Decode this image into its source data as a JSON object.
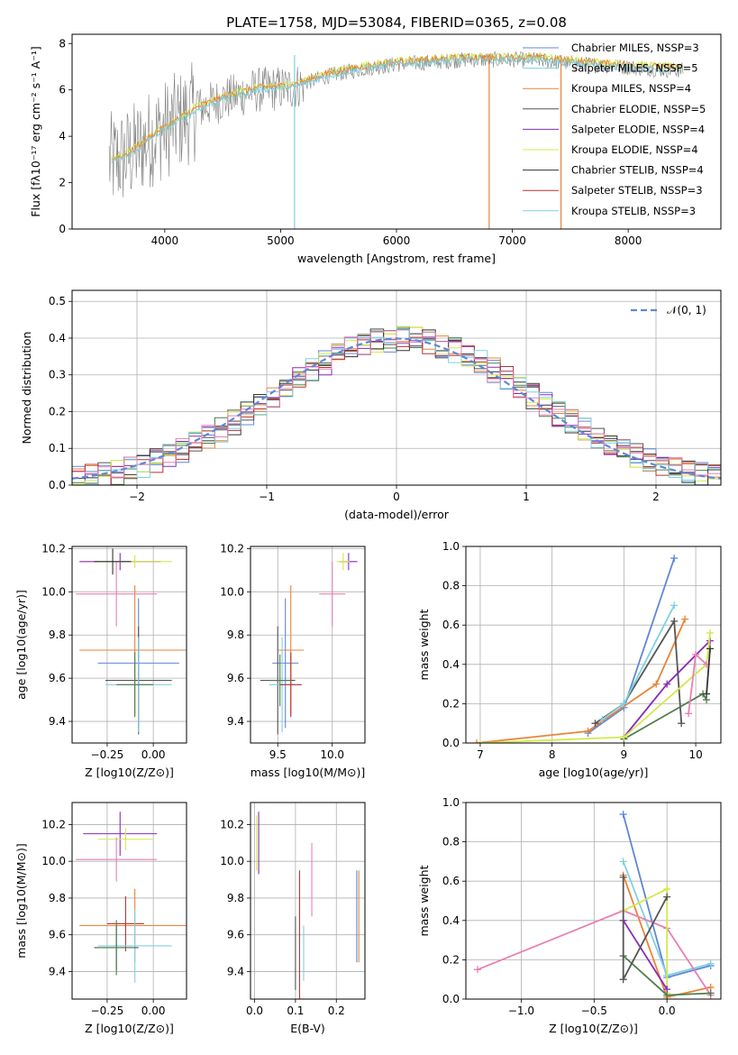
{
  "figure": {
    "title": "PLATE=1758, MJD=53084, FIBERID=0365, z=0.08",
    "colors": [
      "#5f87d8",
      "#e8843a",
      "#555555",
      "#4f7d4f",
      "#8a2bb8",
      "#d4e84a",
      "#333333",
      "#b83333",
      "#7fd1e0",
      "#e87fb5"
    ]
  },
  "chart_data": [
    {
      "id": "spectrum",
      "type": "line",
      "title": "PLATE=1758, MJD=53084, FIBERID=0365, z=0.08",
      "xlabel": "wavelength [Angstrom, rest frame]",
      "ylabel": "Flux [fλ10⁻¹⁷ erg cm⁻² s⁻¹ A⁻¹]",
      "xlim": [
        3200,
        8800
      ],
      "ylim": [
        0,
        8.4
      ],
      "xticks": [
        4000,
        5000,
        6000,
        7000,
        8000
      ],
      "yticks": [
        0,
        2,
        4,
        6,
        8
      ],
      "legend_position": "right",
      "legend": [
        {
          "label": "Chabrier MILES, NSSP=3",
          "color": "#5f87d8"
        },
        {
          "label": "Salpeter MILES, NSSP=5",
          "color": "#7fd1e0"
        },
        {
          "label": "Kroupa MILES, NSSP=4",
          "color": "#e8843a"
        },
        {
          "label": "Chabrier ELODIE, NSSP=5",
          "color": "#555555"
        },
        {
          "label": "Salpeter ELODIE, NSSP=4",
          "color": "#8a2bb8"
        },
        {
          "label": "Kroupa ELODIE, NSSP=4",
          "color": "#d4e84a"
        },
        {
          "label": "Chabrier STELIB, NSSP=4",
          "color": "#333333"
        },
        {
          "label": "Salpeter STELIB, NSSP=3",
          "color": "#b83333"
        },
        {
          "label": "Kroupa STELIB, NSSP=3",
          "color": "#7fd1e0"
        }
      ],
      "continuum": {
        "x": [
          3550,
          3700,
          3900,
          4100,
          4300,
          4500,
          4800,
          5100,
          5400,
          5700,
          6000,
          6300,
          6600,
          6900,
          7200,
          7500,
          7800,
          8100,
          8400
        ],
        "y": [
          2.9,
          3.2,
          4.0,
          4.6,
          5.2,
          5.6,
          6.0,
          6.1,
          6.6,
          6.9,
          7.1,
          7.2,
          7.3,
          7.3,
          7.3,
          7.15,
          7.05,
          6.95,
          6.85
        ]
      }
    },
    {
      "id": "residuals",
      "type": "histogram",
      "xlabel": "(data-model)/error",
      "ylabel": "Normed distribution",
      "xlim": [
        -2.5,
        2.5
      ],
      "ylim": [
        0,
        0.53
      ],
      "xticks": [
        -2,
        -1,
        0,
        1,
        2
      ],
      "yticks": [
        0.0,
        0.1,
        0.2,
        0.3,
        0.4,
        0.5
      ],
      "legend": [
        {
          "label": "𝒩(0, 1)",
          "color": "#5f87d8",
          "style": "dashed"
        }
      ],
      "bin_width": 0.1,
      "bin_start": -2.5,
      "series_reference": {
        "name": "Normal(0,1)",
        "values": [
          0.018,
          0.022,
          0.028,
          0.035,
          0.044,
          0.054,
          0.066,
          0.079,
          0.094,
          0.111,
          0.13,
          0.15,
          0.171,
          0.194,
          0.218,
          0.242,
          0.266,
          0.29,
          0.312,
          0.333,
          0.352,
          0.368,
          0.381,
          0.391,
          0.397,
          0.399,
          0.397,
          0.391,
          0.381,
          0.368,
          0.352,
          0.333,
          0.312,
          0.29,
          0.266,
          0.242,
          0.218,
          0.194,
          0.171,
          0.15,
          0.13,
          0.111,
          0.094,
          0.079,
          0.066,
          0.054,
          0.044,
          0.035,
          0.028,
          0.022,
          0.018
        ]
      }
    },
    {
      "id": "age_vs_Z",
      "type": "scatter",
      "xlabel": "Z [log10(Z/Z⊙)]",
      "ylabel": "age [log10(age/yr)]",
      "xlim": [
        -0.44,
        0.18
      ],
      "ylim": [
        9.3,
        10.21
      ],
      "xticks": [
        -0.25,
        0.0
      ],
      "yticks": [
        9.4,
        9.6,
        9.8,
        10.0,
        10.2
      ],
      "points": [
        {
          "x": -0.08,
          "y": 9.67,
          "xerr": 0.22,
          "yerr": 0.3,
          "c": 0
        },
        {
          "x": -0.1,
          "y": 9.73,
          "xerr": 0.3,
          "yerr": 0.3,
          "c": 1
        },
        {
          "x": -0.08,
          "y": 9.59,
          "xerr": 0.18,
          "yerr": 0.25,
          "c": 2
        },
        {
          "x": -0.18,
          "y": 10.14,
          "xerr": 0.22,
          "yerr": 0.04,
          "c": 4
        },
        {
          "x": -0.1,
          "y": 10.14,
          "xerr": 0.2,
          "yerr": 0.03,
          "c": 5
        },
        {
          "x": -0.2,
          "y": 9.99,
          "xerr": 0.22,
          "yerr": 0.15,
          "c": 9
        },
        {
          "x": -0.08,
          "y": 9.57,
          "xerr": 0.18,
          "yerr": 0.22,
          "c": 8
        },
        {
          "x": -0.22,
          "y": 10.14,
          "xerr": 0.1,
          "yerr": 0.06,
          "c": 6
        },
        {
          "x": -0.1,
          "y": 9.57,
          "xerr": 0.1,
          "yerr": 0.15,
          "c": 3
        }
      ]
    },
    {
      "id": "age_vs_mass",
      "type": "scatter",
      "xlabel": "mass [log10(M/M⊙)]",
      "ylabel": "",
      "xlim": [
        9.25,
        10.3
      ],
      "ylim": [
        9.3,
        10.21
      ],
      "xticks": [
        9.5,
        10.0
      ],
      "yticks": [
        9.4,
        9.6,
        9.8,
        10.0,
        10.2
      ],
      "points": [
        {
          "x": 9.57,
          "y": 9.67,
          "xerr": 0.12,
          "yerr": 0.3,
          "c": 0
        },
        {
          "x": 9.62,
          "y": 9.73,
          "xerr": 0.12,
          "yerr": 0.3,
          "c": 1
        },
        {
          "x": 9.5,
          "y": 9.59,
          "xerr": 0.16,
          "yerr": 0.25,
          "c": 2
        },
        {
          "x": 10.15,
          "y": 10.14,
          "xerr": 0.08,
          "yerr": 0.04,
          "c": 4
        },
        {
          "x": 10.1,
          "y": 10.14,
          "xerr": 0.06,
          "yerr": 0.04,
          "c": 5
        },
        {
          "x": 10.0,
          "y": 9.99,
          "xerr": 0.12,
          "yerr": 0.15,
          "c": 9
        },
        {
          "x": 9.54,
          "y": 9.57,
          "xerr": 0.12,
          "yerr": 0.22,
          "c": 8
        },
        {
          "x": 9.62,
          "y": 9.57,
          "xerr": 0.1,
          "yerr": 0.15,
          "c": 7
        },
        {
          "x": 9.52,
          "y": 9.59,
          "xerr": 0.1,
          "yerr": 0.12,
          "c": 3
        }
      ]
    },
    {
      "id": "massweight_vs_age",
      "type": "line",
      "xlabel": "age [log10(age/yr)]",
      "ylabel": "mass weight",
      "xlim": [
        6.8,
        10.35
      ],
      "ylim": [
        0,
        1.0
      ],
      "xticks": [
        7,
        8,
        9,
        10
      ],
      "yticks": [
        0.0,
        0.2,
        0.4,
        0.6,
        0.8,
        1.0
      ],
      "series": [
        {
          "c": 0,
          "x": [
            8.5,
            9.0,
            9.7
          ],
          "y": [
            0.05,
            0.18,
            0.94
          ]
        },
        {
          "c": 1,
          "x": [
            6.95,
            8.5,
            9.45,
            9.85
          ],
          "y": [
            0.0,
            0.06,
            0.3,
            0.63
          ]
        },
        {
          "c": 2,
          "x": [
            8.6,
            9.0,
            9.7,
            9.8
          ],
          "y": [
            0.1,
            0.2,
            0.62,
            0.1
          ]
        },
        {
          "c": 3,
          "x": [
            9.0,
            10.1,
            10.15
          ],
          "y": [
            0.02,
            0.25,
            0.22
          ]
        },
        {
          "c": 4,
          "x": [
            9.0,
            9.6,
            10.2
          ],
          "y": [
            0.03,
            0.3,
            0.52
          ]
        },
        {
          "c": 5,
          "x": [
            7.0,
            9.0,
            10.15,
            10.2
          ],
          "y": [
            0.0,
            0.03,
            0.4,
            0.56
          ]
        },
        {
          "c": 8,
          "x": [
            8.7,
            9.0,
            9.7
          ],
          "y": [
            0.12,
            0.2,
            0.7
          ]
        },
        {
          "c": 9,
          "x": [
            9.9,
            10.0,
            10.15
          ],
          "y": [
            0.15,
            0.45,
            0.4
          ]
        },
        {
          "c": 6,
          "x": [
            10.15,
            10.2
          ],
          "y": [
            0.25,
            0.48
          ]
        }
      ]
    },
    {
      "id": "mass_vs_Z",
      "type": "scatter",
      "xlabel": "Z [log10(Z/Z⊙)]",
      "ylabel": "mass [log10(M/M⊙)]",
      "xlim": [
        -0.44,
        0.18
      ],
      "ylim": [
        9.25,
        10.32
      ],
      "xticks": [
        -0.25,
        0.0
      ],
      "yticks": [
        9.4,
        9.6,
        9.8,
        10.0,
        10.2
      ],
      "points": [
        {
          "x": -0.1,
          "y": 9.65,
          "xerr": 0.3,
          "yerr": 0.2,
          "c": 1
        },
        {
          "x": -0.18,
          "y": 10.15,
          "xerr": 0.2,
          "yerr": 0.12,
          "c": 4
        },
        {
          "x": -0.15,
          "y": 10.12,
          "xerr": 0.15,
          "yerr": 0.06,
          "c": 5
        },
        {
          "x": -0.2,
          "y": 10.01,
          "xerr": 0.22,
          "yerr": 0.12,
          "c": 9
        },
        {
          "x": -0.15,
          "y": 9.66,
          "xerr": 0.1,
          "yerr": 0.15,
          "c": 7
        },
        {
          "x": -0.1,
          "y": 9.54,
          "xerr": 0.2,
          "yerr": 0.2,
          "c": 8
        },
        {
          "x": -0.2,
          "y": 9.53,
          "xerr": 0.12,
          "yerr": 0.12,
          "c": 2
        },
        {
          "x": -0.2,
          "y": 9.53,
          "xerr": 0.1,
          "yerr": 0.15,
          "c": 3
        }
      ]
    },
    {
      "id": "mass_vs_EBV",
      "type": "scatter",
      "xlabel": "E(B-V)",
      "ylabel": "",
      "xlim": [
        -0.01,
        0.27
      ],
      "ylim": [
        9.25,
        10.32
      ],
      "xticks": [
        0.0,
        0.1,
        0.2
      ],
      "yticks": [
        9.4,
        9.6,
        9.8,
        10.0,
        10.2
      ],
      "points": [
        {
          "x": 0.005,
          "y": 10.1,
          "yerr": 0.15,
          "c": 5
        },
        {
          "x": 0.01,
          "y": 10.1,
          "yerr": 0.17,
          "c": 4
        },
        {
          "x": 0.1,
          "y": 9.5,
          "yerr": 0.2,
          "c": 2
        },
        {
          "x": 0.11,
          "y": 9.6,
          "yerr": 0.35,
          "c": 7
        },
        {
          "x": 0.12,
          "y": 9.5,
          "yerr": 0.15,
          "c": 8
        },
        {
          "x": 0.14,
          "y": 9.9,
          "yerr": 0.2,
          "c": 9
        },
        {
          "x": 0.25,
          "y": 9.7,
          "yerr": 0.25,
          "c": 0
        },
        {
          "x": 0.255,
          "y": 9.7,
          "yerr": 0.25,
          "c": 1
        }
      ]
    },
    {
      "id": "massweight_vs_Z",
      "type": "line",
      "xlabel": "Z [log10(Z/Z⊙)]",
      "ylabel": "mass weight",
      "xlim": [
        -1.38,
        0.37
      ],
      "ylim": [
        0,
        1.0
      ],
      "xticks": [
        -1.0,
        -0.5,
        0.0
      ],
      "yticks": [
        0.0,
        0.2,
        0.4,
        0.6,
        0.8,
        1.0
      ],
      "series": [
        {
          "c": 0,
          "x": [
            -0.3,
            0.0,
            0.3
          ],
          "y": [
            0.94,
            0.11,
            0.17
          ]
        },
        {
          "c": 8,
          "x": [
            -0.3,
            0.0,
            0.3
          ],
          "y": [
            0.7,
            0.12,
            0.18
          ]
        },
        {
          "c": 1,
          "x": [
            -0.3,
            0.0,
            0.3
          ],
          "y": [
            0.63,
            0.01,
            0.06
          ]
        },
        {
          "c": 9,
          "x": [
            -1.3,
            -0.3,
            0.0,
            0.3
          ],
          "y": [
            0.15,
            0.45,
            0.36,
            0.02
          ]
        },
        {
          "c": 5,
          "x": [
            -0.3,
            0.0,
            0.0
          ],
          "y": [
            0.45,
            0.56,
            0.03
          ]
        },
        {
          "c": 4,
          "x": [
            -0.3,
            0.0
          ],
          "y": [
            0.4,
            0.05
          ]
        },
        {
          "c": 3,
          "x": [
            -0.3,
            0.0,
            0.3
          ],
          "y": [
            0.22,
            0.02,
            0.03
          ]
        },
        {
          "c": 2,
          "x": [
            -0.3,
            -0.3,
            0.0
          ],
          "y": [
            0.62,
            0.1,
            0.52
          ]
        }
      ]
    }
  ]
}
